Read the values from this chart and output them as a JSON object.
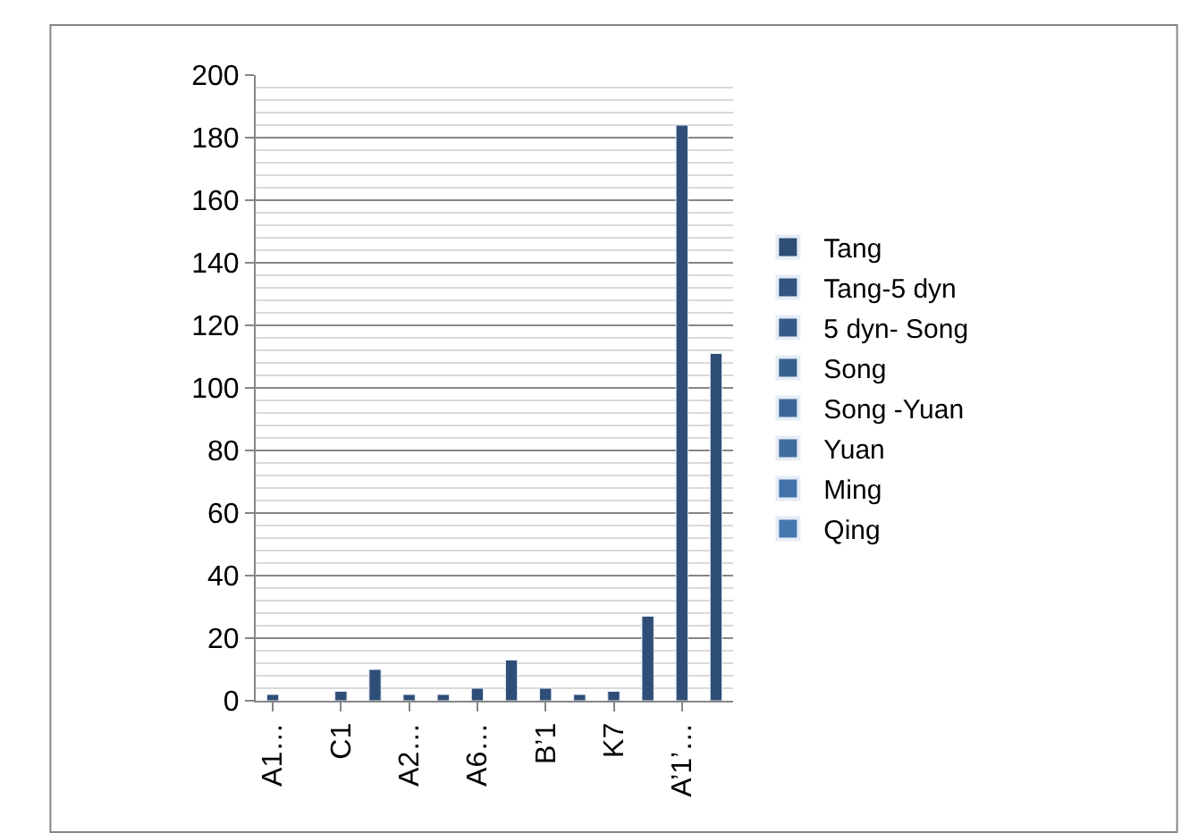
{
  "chart_data": {
    "type": "bar",
    "categories": [
      "A1…",
      null,
      "C1",
      null,
      "A2…",
      null,
      "A6…",
      null,
      "B’1",
      null,
      "K7",
      null,
      "A’1’…",
      null
    ],
    "series": [
      {
        "name": "Tang",
        "color": "#2f4e77",
        "values": [
          2,
          null,
          3,
          10,
          2,
          2,
          4,
          13,
          4,
          2,
          3,
          27,
          184,
          111
        ]
      },
      {
        "name": "Tang-5 dyn",
        "color": "#32547f",
        "values": [
          null,
          null,
          null,
          null,
          null,
          null,
          null,
          null,
          null,
          null,
          null,
          null,
          null,
          null
        ]
      },
      {
        "name": "5 dyn- Song",
        "color": "#355a87",
        "values": [
          null,
          null,
          null,
          null,
          null,
          null,
          null,
          null,
          null,
          null,
          null,
          null,
          null,
          null
        ]
      },
      {
        "name": "Song",
        "color": "#38608f",
        "values": [
          null,
          null,
          null,
          null,
          null,
          null,
          null,
          null,
          null,
          null,
          null,
          null,
          null,
          null
        ]
      },
      {
        "name": "Song -Yuan",
        "color": "#3b6697",
        "values": [
          null,
          null,
          null,
          null,
          null,
          null,
          null,
          null,
          null,
          null,
          null,
          null,
          null,
          null
        ]
      },
      {
        "name": "Yuan",
        "color": "#3e6c9f",
        "values": [
          null,
          null,
          null,
          null,
          null,
          null,
          null,
          null,
          null,
          null,
          null,
          null,
          null,
          null
        ]
      },
      {
        "name": "Ming",
        "color": "#4272a7",
        "values": [
          null,
          null,
          null,
          null,
          null,
          null,
          null,
          null,
          null,
          null,
          null,
          null,
          null,
          null
        ]
      },
      {
        "name": "Qing",
        "color": "#4678af",
        "values": [
          null,
          null,
          null,
          null,
          null,
          null,
          null,
          null,
          null,
          null,
          null,
          null,
          null,
          null
        ]
      }
    ],
    "ylim": [
      0,
      200
    ],
    "yticks": [
      0,
      20,
      40,
      60,
      80,
      100,
      120,
      140,
      160,
      180,
      200
    ],
    "grid": "y",
    "legend": "right"
  }
}
